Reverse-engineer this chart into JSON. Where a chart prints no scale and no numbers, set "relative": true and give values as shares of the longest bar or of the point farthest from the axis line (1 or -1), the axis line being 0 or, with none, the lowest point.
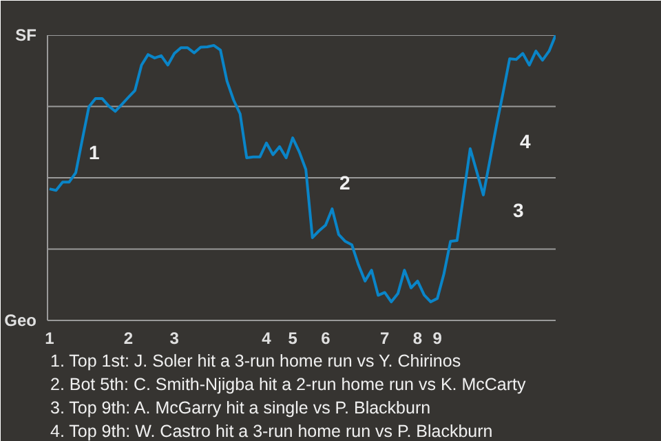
{
  "chart_data": {
    "type": "line",
    "relative": true,
    "grid": "y",
    "categories": [
      "1",
      null,
      null,
      null,
      null,
      null,
      null,
      null,
      null,
      null,
      null,
      null,
      "2",
      null,
      null,
      null,
      null,
      null,
      null,
      "3",
      null,
      null,
      null,
      null,
      null,
      null,
      null,
      null,
      null,
      null,
      null,
      null,
      null,
      "4",
      null,
      null,
      null,
      "5",
      null,
      null,
      null,
      null,
      "6",
      null,
      null,
      null,
      null,
      null,
      null,
      null,
      null,
      "7",
      null,
      null,
      null,
      null,
      "8",
      null,
      null,
      "9",
      null,
      null,
      null,
      null,
      null,
      null,
      null,
      null,
      null,
      null,
      null,
      null,
      null,
      null,
      null,
      null,
      null,
      null
    ],
    "series": [
      {
        "color": "#0a85c8",
        "values": [
          0.461,
          0.456,
          0.485,
          0.485,
          0.518,
          0.635,
          0.749,
          0.778,
          0.778,
          0.752,
          0.733,
          0.757,
          0.782,
          0.806,
          0.895,
          0.932,
          0.92,
          0.928,
          0.895,
          0.936,
          0.956,
          0.956,
          0.938,
          0.958,
          0.959,
          0.964,
          0.948,
          0.839,
          0.773,
          0.724,
          0.57,
          0.573,
          0.573,
          0.622,
          0.581,
          0.609,
          0.57,
          0.64,
          0.591,
          0.529,
          0.29,
          0.314,
          0.334,
          0.391,
          0.301,
          0.277,
          0.265,
          0.195,
          0.138,
          0.176,
          0.088,
          0.098,
          0.065,
          0.094,
          0.176,
          0.114,
          0.138,
          0.089,
          0.065,
          0.077,
          0.163,
          0.277,
          0.28,
          0.44,
          0.602,
          0.521,
          0.44,
          0.562,
          0.684,
          0.798,
          0.917,
          0.915,
          0.936,
          0.895,
          0.944,
          0.912,
          0.944,
          1
        ]
      }
    ],
    "annotations": [
      "SF",
      "Geo",
      "1",
      "2",
      "3",
      "4",
      "1. Top 1st: J. Soler hit a 3-run home run vs Y. Chirinos",
      "2. Bot 5th: C. Smith-Njigba hit a 2-run home run vs K. McCarty",
      "3. Top 9th: A. McGarry hit a single vs P. Blackburn",
      "4. Top 9th: W. Castro hit a 3-run home run vs P. Blackburn"
    ]
  }
}
